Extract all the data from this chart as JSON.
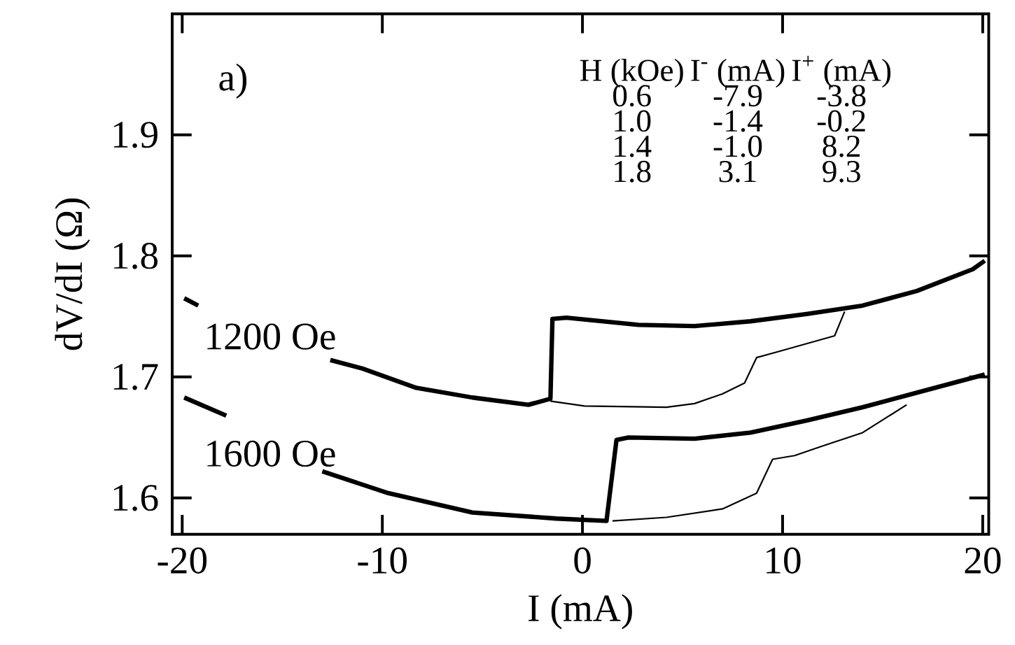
{
  "chart_data": {
    "type": "line",
    "xlabel": "I (mA)",
    "ylabel": "dV/dI (Ω)",
    "xlim": [
      -20.5,
      20.3
    ],
    "ylim": [
      1.57,
      2.0
    ],
    "xticks": [
      -20,
      -10,
      0,
      10,
      20
    ],
    "yticks": [
      1.6,
      1.7,
      1.8,
      1.9
    ],
    "grid": false,
    "marker": "none",
    "line_style": "solid",
    "series": [
      {
        "color": "#000000",
        "x": [
          -19.9,
          -19.2,
          -16.0,
          -12.6,
          -11.0,
          -8.3,
          -5.5,
          -2.7,
          -1.6,
          -1.5,
          -0.8,
          2.8,
          5.6,
          8.4,
          11.2,
          14.0,
          16.7,
          19.5,
          20.1
        ],
        "values": [
          1.765,
          1.759,
          null,
          1.714,
          1.707,
          1.691,
          1.683,
          1.677,
          1.682,
          1.748,
          1.749,
          1.743,
          1.742,
          1.746,
          1.752,
          1.759,
          1.771,
          1.789,
          1.796
        ]
      },
      {
        "color": "#000000",
        "x": [
          -1.6,
          0.1,
          4.2,
          5.6,
          7.0,
          8.1,
          8.7,
          9.8,
          12.6,
          13.1
        ],
        "values": [
          1.68,
          1.676,
          1.675,
          1.678,
          1.686,
          1.695,
          1.716,
          1.721,
          1.734,
          1.754
        ]
      },
      {
        "color": "#000000",
        "x": [
          -19.9,
          -17.8,
          -15.0,
          -13.0,
          -9.7,
          -5.5,
          -1.3,
          1.2,
          1.7,
          2.3,
          5.6,
          8.4,
          11.2,
          14.0,
          16.7,
          20.1
        ],
        "values": [
          1.683,
          1.668,
          null,
          1.622,
          1.604,
          1.588,
          1.583,
          1.581,
          1.648,
          1.65,
          1.649,
          1.654,
          1.664,
          1.675,
          1.687,
          1.702
        ]
      },
      {
        "color": "#000000",
        "x": [
          1.5,
          4.2,
          7.0,
          8.7,
          9.5,
          10.6,
          12.0,
          14.0,
          16.2
        ],
        "values": [
          1.581,
          1.584,
          1.591,
          1.604,
          1.632,
          1.635,
          1.643,
          1.654,
          1.677
        ]
      }
    ],
    "annotations": [
      "a)",
      "H (kOe)",
      "I$^{-}$ (mA)",
      "I$^{+}$ (mA)",
      "0.6",
      "-7.9",
      "-3.8",
      "1.0",
      "-1.4",
      "-0.2",
      "1.4",
      "-1.0",
      "8.2",
      "1.8",
      "3.1",
      "9.3",
      "1200 Oe",
      "1600 Oe"
    ]
  }
}
